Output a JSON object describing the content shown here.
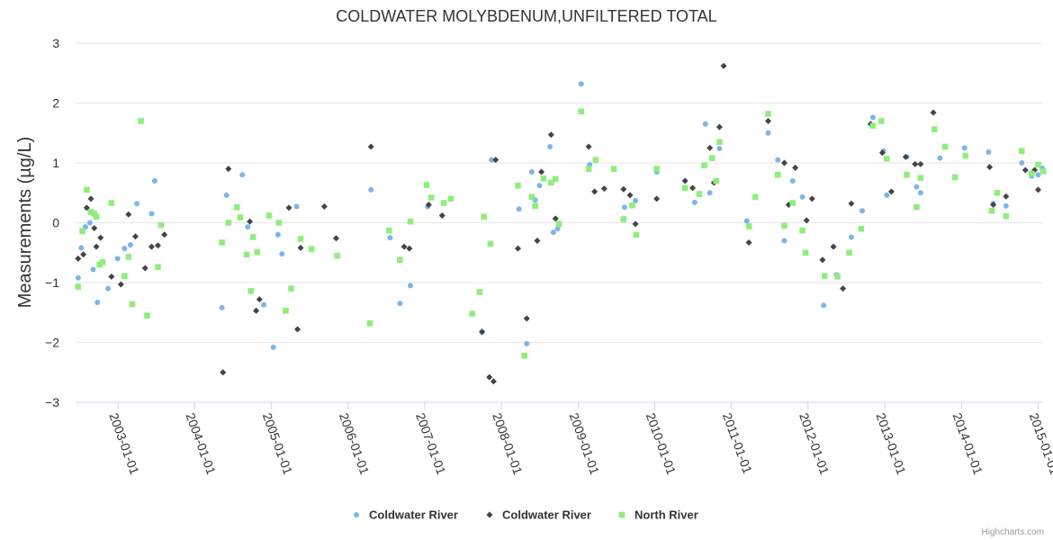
{
  "chart_data": {
    "type": "scatter",
    "title": "COLDWATER MOLYBDENUM,UNFILTERED TOTAL",
    "ylabel": "Measurements (µg/L)",
    "xlabel": "",
    "ylim": [
      -3,
      3
    ],
    "yticks": [
      "3",
      "2",
      "1",
      "0",
      "−1",
      "−2",
      "−3"
    ],
    "xlim": [
      "2002-06-13",
      "2015-01-01"
    ],
    "xticks": [
      "2003-01-01",
      "2004-01-01",
      "2005-01-01",
      "2006-01-01",
      "2007-01-01",
      "2008-01-01",
      "2009-01-01",
      "2010-01-01",
      "2011-01-01",
      "2012-01-01",
      "2013-01-01",
      "2014-01-01",
      "2015-01-01"
    ],
    "grid": "horizontal",
    "legend_position": "bottom-center",
    "credits": "Highcharts.com",
    "series": [
      {
        "name": "Coldwater River",
        "marker": "circle",
        "color": "#7cb5ec",
        "points": [
          [
            "2002-06-25",
            -0.92
          ],
          [
            "2002-07-10",
            -0.42
          ],
          [
            "2002-07-30",
            -0.07
          ],
          [
            "2002-08-20",
            0.0
          ],
          [
            "2002-09-05",
            -0.78
          ],
          [
            "2002-09-25",
            -1.33
          ],
          [
            "2002-11-15",
            -1.1
          ],
          [
            "2002-12-30",
            -0.6
          ],
          [
            "2003-02-01",
            -0.43
          ],
          [
            "2003-03-01",
            -0.37
          ],
          [
            "2003-04-01",
            0.32
          ],
          [
            "2003-06-10",
            0.15
          ],
          [
            "2003-06-25",
            0.7
          ],
          [
            "2004-05-10",
            -1.42
          ],
          [
            "2004-06-01",
            0.46
          ],
          [
            "2004-08-15",
            0.8
          ],
          [
            "2004-09-10",
            -0.07
          ],
          [
            "2004-11-25",
            -1.37
          ],
          [
            "2005-01-10",
            -2.08
          ],
          [
            "2005-02-01",
            -0.2
          ],
          [
            "2005-02-20",
            -0.52
          ],
          [
            "2005-05-01",
            0.27
          ],
          [
            "2006-04-20",
            0.55
          ],
          [
            "2006-07-20",
            -0.25
          ],
          [
            "2006-09-05",
            -1.35
          ],
          [
            "2006-10-25",
            -1.05
          ],
          [
            "2007-01-15",
            0.27
          ],
          [
            "2007-10-01",
            -1.83
          ],
          [
            "2007-11-15",
            1.05
          ],
          [
            "2008-03-25",
            0.23
          ],
          [
            "2008-05-01",
            -2.02
          ],
          [
            "2008-05-25",
            0.85
          ],
          [
            "2008-06-10",
            0.38
          ],
          [
            "2008-07-01",
            0.62
          ],
          [
            "2008-08-20",
            1.27
          ],
          [
            "2008-09-05",
            -0.16
          ],
          [
            "2008-09-25",
            -0.1
          ],
          [
            "2009-01-15",
            2.32
          ],
          [
            "2009-02-25",
            0.97
          ],
          [
            "2009-08-10",
            0.26
          ],
          [
            "2009-10-01",
            0.37
          ],
          [
            "2010-01-10",
            0.85
          ],
          [
            "2010-07-10",
            0.34
          ],
          [
            "2010-08-30",
            1.65
          ],
          [
            "2010-09-20",
            0.5
          ],
          [
            "2010-11-05",
            1.24
          ],
          [
            "2011-03-15",
            0.03
          ],
          [
            "2011-06-25",
            1.5
          ],
          [
            "2011-08-10",
            1.05
          ],
          [
            "2011-09-10",
            -0.3
          ],
          [
            "2011-10-20",
            0.7
          ],
          [
            "2011-12-05",
            0.43
          ],
          [
            "2012-03-15",
            -1.38
          ],
          [
            "2012-05-15",
            -0.87
          ],
          [
            "2012-07-25",
            -0.24
          ],
          [
            "2012-09-15",
            0.2
          ],
          [
            "2012-11-05",
            1.76
          ],
          [
            "2012-12-25",
            1.2
          ],
          [
            "2013-01-10",
            0.46
          ],
          [
            "2013-04-15",
            1.1
          ],
          [
            "2013-06-01",
            0.6
          ],
          [
            "2013-06-20",
            0.5
          ],
          [
            "2013-09-20",
            1.08
          ],
          [
            "2014-01-15",
            1.25
          ],
          [
            "2014-05-10",
            1.18
          ],
          [
            "2014-06-01",
            0.32
          ],
          [
            "2014-08-01",
            0.28
          ],
          [
            "2014-10-15",
            1.0
          ],
          [
            "2014-12-01",
            0.78
          ],
          [
            "2015-01-01",
            0.8
          ],
          [
            "2015-01-20",
            0.91
          ]
        ]
      },
      {
        "name": "Coldwater River",
        "marker": "diamond",
        "color": "#434348",
        "points": [
          [
            "2002-06-25",
            -0.6
          ],
          [
            "2002-07-20",
            -0.53
          ],
          [
            "2002-08-05",
            0.25
          ],
          [
            "2002-08-25",
            0.4
          ],
          [
            "2002-09-10",
            -0.09
          ],
          [
            "2002-09-20",
            -0.4
          ],
          [
            "2002-10-10",
            -0.25
          ],
          [
            "2002-12-01",
            -0.9
          ],
          [
            "2003-01-15",
            -1.03
          ],
          [
            "2003-02-20",
            0.14
          ],
          [
            "2003-03-25",
            -0.23
          ],
          [
            "2003-05-10",
            -0.76
          ],
          [
            "2003-06-10",
            -0.4
          ],
          [
            "2003-07-10",
            -0.38
          ],
          [
            "2003-08-10",
            -0.2
          ],
          [
            "2004-05-15",
            -2.5
          ],
          [
            "2004-06-10",
            0.9
          ],
          [
            "2004-09-20",
            0.02
          ],
          [
            "2004-10-20",
            -1.47
          ],
          [
            "2004-11-05",
            -1.28
          ],
          [
            "2005-03-25",
            0.25
          ],
          [
            "2005-05-05",
            -1.78
          ],
          [
            "2005-05-20",
            -0.42
          ],
          [
            "2005-09-10",
            0.27
          ],
          [
            "2005-11-05",
            -0.26
          ],
          [
            "2006-04-20",
            1.27
          ],
          [
            "2006-09-25",
            -0.4
          ],
          [
            "2006-10-20",
            -0.43
          ],
          [
            "2007-01-20",
            0.3
          ],
          [
            "2007-03-25",
            0.12
          ],
          [
            "2007-10-01",
            -1.82
          ],
          [
            "2007-11-05",
            -2.58
          ],
          [
            "2007-11-25",
            -2.65
          ],
          [
            "2007-12-05",
            1.05
          ],
          [
            "2008-03-20",
            -0.43
          ],
          [
            "2008-05-01",
            -1.6
          ],
          [
            "2008-06-20",
            -0.3
          ],
          [
            "2008-07-10",
            0.85
          ],
          [
            "2008-08-25",
            1.47
          ],
          [
            "2008-09-15",
            0.07
          ],
          [
            "2009-02-20",
            1.27
          ],
          [
            "2009-03-20",
            0.52
          ],
          [
            "2009-05-05",
            0.57
          ],
          [
            "2009-08-05",
            0.56
          ],
          [
            "2009-09-05",
            0.46
          ],
          [
            "2009-10-01",
            -0.02
          ],
          [
            "2010-01-10",
            0.4
          ],
          [
            "2010-05-25",
            0.7
          ],
          [
            "2010-06-30",
            0.58
          ],
          [
            "2010-09-20",
            1.25
          ],
          [
            "2010-10-10",
            0.67
          ],
          [
            "2010-11-25",
            2.62
          ],
          [
            "2010-11-05",
            1.6
          ],
          [
            "2011-03-25",
            -0.33
          ],
          [
            "2011-06-25",
            1.7
          ],
          [
            "2011-09-10",
            1.0
          ],
          [
            "2011-10-01",
            0.3
          ],
          [
            "2011-11-01",
            0.92
          ],
          [
            "2011-12-25",
            0.04
          ],
          [
            "2012-01-20",
            0.4
          ],
          [
            "2012-03-10",
            -0.62
          ],
          [
            "2012-05-01",
            -0.4
          ],
          [
            "2012-06-15",
            -1.1
          ],
          [
            "2012-07-25",
            0.32
          ],
          [
            "2012-10-25",
            1.65
          ],
          [
            "2012-12-20",
            1.17
          ],
          [
            "2013-02-01",
            0.52
          ],
          [
            "2013-04-10",
            1.1
          ],
          [
            "2013-05-25",
            0.98
          ],
          [
            "2013-06-20",
            0.98
          ],
          [
            "2013-08-20",
            1.84
          ],
          [
            "2014-05-15",
            0.93
          ],
          [
            "2014-06-01",
            0.3
          ],
          [
            "2014-08-01",
            0.44
          ],
          [
            "2014-11-01",
            0.88
          ],
          [
            "2014-12-15",
            0.88
          ],
          [
            "2015-01-01",
            0.55
          ]
        ]
      },
      {
        "name": "North River",
        "marker": "square",
        "color": "#90ed7d",
        "points": [
          [
            "2002-06-25",
            -1.07
          ],
          [
            "2002-07-15",
            -0.14
          ],
          [
            "2002-08-05",
            0.55
          ],
          [
            "2002-08-25",
            0.18
          ],
          [
            "2002-09-10",
            0.15
          ],
          [
            "2002-09-20",
            0.1
          ],
          [
            "2002-10-05",
            -0.7
          ],
          [
            "2002-10-20",
            -0.66
          ],
          [
            "2002-12-01",
            0.33
          ],
          [
            "2003-02-01",
            -0.89
          ],
          [
            "2003-02-20",
            -0.57
          ],
          [
            "2003-03-10",
            -1.36
          ],
          [
            "2003-04-20",
            1.7
          ],
          [
            "2003-05-20",
            -1.55
          ],
          [
            "2003-07-10",
            -0.74
          ],
          [
            "2003-07-25",
            -0.04
          ],
          [
            "2004-05-10",
            -0.33
          ],
          [
            "2004-06-10",
            0.0
          ],
          [
            "2004-07-20",
            0.26
          ],
          [
            "2004-08-05",
            0.09
          ],
          [
            "2004-09-05",
            -0.53
          ],
          [
            "2004-09-25",
            -1.14
          ],
          [
            "2004-10-05",
            -0.24
          ],
          [
            "2004-10-25",
            -0.49
          ],
          [
            "2004-12-20",
            0.12
          ],
          [
            "2005-02-05",
            0.0
          ],
          [
            "2005-03-10",
            -1.47
          ],
          [
            "2005-04-05",
            -1.1
          ],
          [
            "2005-05-20",
            -0.27
          ],
          [
            "2005-07-10",
            -0.44
          ],
          [
            "2005-11-10",
            -0.55
          ],
          [
            "2006-04-15",
            -1.68
          ],
          [
            "2006-07-15",
            -0.13
          ],
          [
            "2006-09-05",
            -0.62
          ],
          [
            "2006-10-25",
            0.02
          ],
          [
            "2007-01-10",
            0.63
          ],
          [
            "2007-02-01",
            0.42
          ],
          [
            "2007-04-01",
            0.33
          ],
          [
            "2007-05-05",
            0.4
          ],
          [
            "2007-08-15",
            -1.52
          ],
          [
            "2007-09-20",
            -1.16
          ],
          [
            "2007-10-10",
            0.1
          ],
          [
            "2007-11-10",
            -0.35
          ],
          [
            "2008-03-20",
            0.62
          ],
          [
            "2008-04-20",
            -2.22
          ],
          [
            "2008-05-25",
            0.43
          ],
          [
            "2008-06-10",
            0.28
          ],
          [
            "2008-07-20",
            0.74
          ],
          [
            "2008-08-25",
            0.67
          ],
          [
            "2008-09-15",
            0.73
          ],
          [
            "2008-10-01",
            -0.02
          ],
          [
            "2009-01-15",
            1.86
          ],
          [
            "2009-02-20",
            0.9
          ],
          [
            "2009-03-25",
            1.05
          ],
          [
            "2009-06-20",
            0.9
          ],
          [
            "2009-08-05",
            0.06
          ],
          [
            "2009-09-15",
            0.29
          ],
          [
            "2009-10-05",
            -0.2
          ],
          [
            "2010-01-10",
            0.9
          ],
          [
            "2010-05-25",
            0.58
          ],
          [
            "2010-08-01",
            0.48
          ],
          [
            "2010-08-25",
            0.96
          ],
          [
            "2010-10-01",
            1.08
          ],
          [
            "2010-10-20",
            0.7
          ],
          [
            "2010-11-05",
            1.35
          ],
          [
            "2011-03-25",
            -0.06
          ],
          [
            "2011-04-25",
            0.43
          ],
          [
            "2011-06-25",
            1.82
          ],
          [
            "2011-08-10",
            0.8
          ],
          [
            "2011-09-10",
            -0.05
          ],
          [
            "2011-10-20",
            0.33
          ],
          [
            "2011-12-05",
            -0.13
          ],
          [
            "2011-12-20",
            -0.5
          ],
          [
            "2012-03-20",
            -0.89
          ],
          [
            "2012-05-20",
            -0.9
          ],
          [
            "2012-07-15",
            -0.5
          ],
          [
            "2012-09-10",
            -0.1
          ],
          [
            "2012-11-05",
            1.62
          ],
          [
            "2012-12-15",
            1.7
          ],
          [
            "2013-01-10",
            1.07
          ],
          [
            "2013-04-15",
            0.8
          ],
          [
            "2013-06-01",
            0.26
          ],
          [
            "2013-06-20",
            0.75
          ],
          [
            "2013-08-25",
            1.56
          ],
          [
            "2013-10-15",
            1.27
          ],
          [
            "2013-12-01",
            0.76
          ],
          [
            "2014-01-20",
            1.12
          ],
          [
            "2014-05-25",
            0.2
          ],
          [
            "2014-06-20",
            0.5
          ],
          [
            "2014-08-01",
            0.11
          ],
          [
            "2014-10-15",
            1.2
          ],
          [
            "2014-12-01",
            0.82
          ],
          [
            "2015-01-01",
            0.97
          ],
          [
            "2015-01-25",
            0.86
          ]
        ]
      }
    ]
  }
}
